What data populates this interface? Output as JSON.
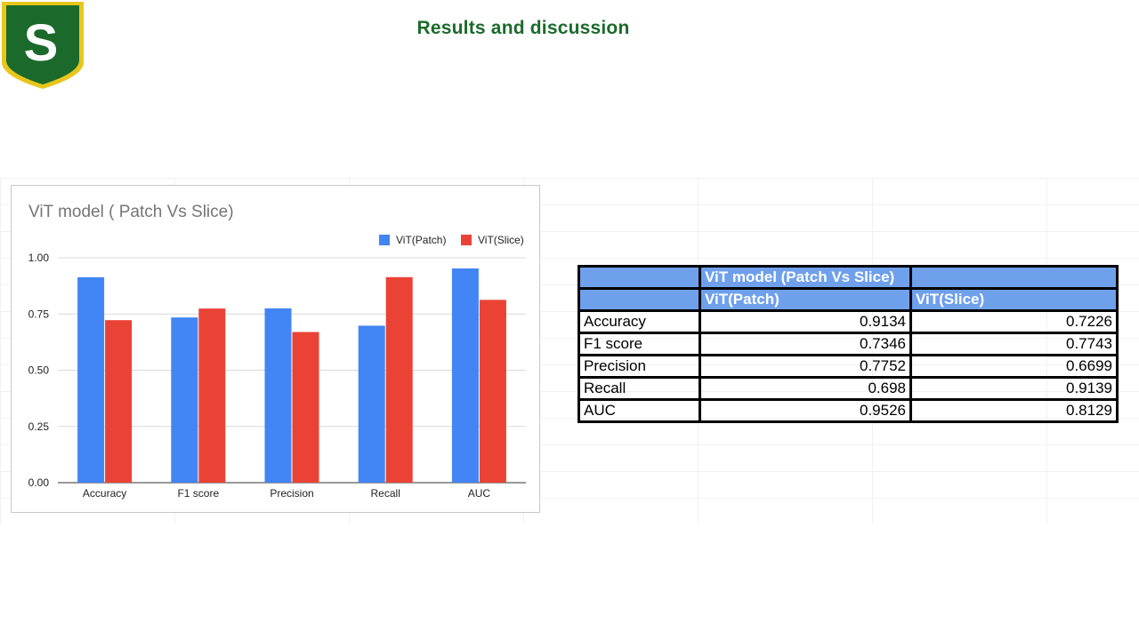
{
  "slide": {
    "title": "Results and discussion"
  },
  "logo": {
    "letter": "S",
    "colors": {
      "shield": "#1b6a2b",
      "border": "#e8c61c",
      "letter": "#ffffff"
    }
  },
  "chart_data": {
    "type": "bar",
    "title": "ViT model ( Patch Vs Slice)",
    "categories": [
      "Accuracy",
      "F1 score",
      "Precision",
      "Recall",
      "AUC"
    ],
    "series": [
      {
        "name": "ViT(Patch)",
        "values": [
          0.9134,
          0.7346,
          0.7752,
          0.698,
          0.9526
        ],
        "color": "#4285f4"
      },
      {
        "name": "ViT(Slice)",
        "values": [
          0.7226,
          0.7743,
          0.6699,
          0.9139,
          0.8129
        ],
        "color": "#ea4335"
      }
    ],
    "yticks": [
      "0.00",
      "0.25",
      "0.50",
      "0.75",
      "1.00"
    ],
    "ylim": [
      0,
      1
    ],
    "grid": true,
    "legend": "top-right"
  },
  "table": {
    "header1": [
      "",
      "ViT model (Patch Vs Slice)",
      ""
    ],
    "header2": [
      "",
      "ViT(Patch)",
      "ViT(Slice)"
    ],
    "rows": [
      [
        "Accuracy",
        "0.9134",
        "0.7226"
      ],
      [
        "F1 score",
        "0.7346",
        "0.7743"
      ],
      [
        "Precision",
        "0.7752",
        "0.6699"
      ],
      [
        "Recall",
        "0.698",
        "0.9139"
      ],
      [
        "AUC",
        "0.9526",
        "0.8129"
      ]
    ]
  }
}
